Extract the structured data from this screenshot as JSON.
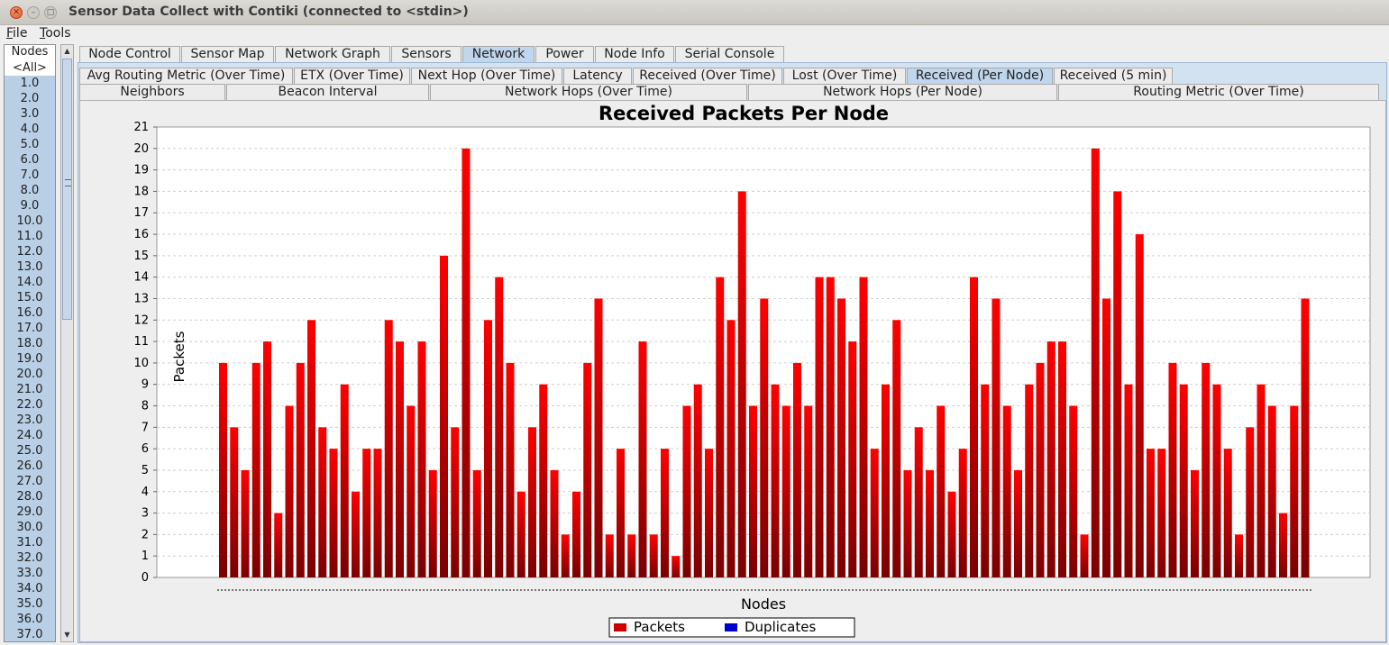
{
  "window": {
    "title": "Sensor Data Collect with Contiki (connected to <stdin>)"
  },
  "menu": {
    "file": "File",
    "tools": "Tools"
  },
  "nodes": {
    "header": "Nodes",
    "items": [
      "<All>",
      "1.0",
      "2.0",
      "3.0",
      "4.0",
      "5.0",
      "6.0",
      "7.0",
      "8.0",
      "9.0",
      "10.0",
      "11.0",
      "12.0",
      "13.0",
      "14.0",
      "15.0",
      "16.0",
      "17.0",
      "18.0",
      "19.0",
      "20.0",
      "21.0",
      "22.0",
      "23.0",
      "24.0",
      "25.0",
      "26.0",
      "27.0",
      "28.0",
      "29.0",
      "30.0",
      "31.0",
      "32.0",
      "33.0",
      "34.0",
      "35.0",
      "36.0",
      "37.0"
    ]
  },
  "main_tabs": [
    "Node Control",
    "Sensor Map",
    "Network Graph",
    "Sensors",
    "Network",
    "Power",
    "Node Info",
    "Serial Console"
  ],
  "main_tab_selected": "Network",
  "sub_tabs_row1": [
    "Avg Routing Metric (Over Time)",
    "ETX (Over Time)",
    "Next Hop (Over Time)",
    "Latency",
    "Received (Over Time)",
    "Lost (Over Time)",
    "Received (Per Node)",
    "Received (5 min)"
  ],
  "sub_tabs_row2": [
    "Neighbors",
    "Beacon Interval",
    "Network Hops (Over Time)",
    "Network Hops (Per Node)",
    "Routing Metric (Over Time)"
  ],
  "sub_tab_selected": "Received (Per Node)",
  "chart_data": {
    "type": "bar",
    "title": "Received Packets Per Node",
    "xlabel": "Nodes",
    "ylabel": "Packets",
    "ylim": [
      0,
      21
    ],
    "yticks": [
      0,
      1,
      2,
      3,
      4,
      5,
      6,
      7,
      8,
      9,
      10,
      11,
      12,
      13,
      14,
      15,
      16,
      17,
      18,
      19,
      20,
      21
    ],
    "grid": true,
    "legend_position": "bottom",
    "series": [
      {
        "name": "Packets",
        "color": "#e00000",
        "values": [
          10,
          7,
          5,
          10,
          11,
          3,
          8,
          10,
          12,
          7,
          6,
          9,
          4,
          6,
          6,
          12,
          11,
          8,
          11,
          5,
          15,
          7,
          20,
          5,
          12,
          14,
          10,
          4,
          7,
          9,
          5,
          2,
          4,
          10,
          13,
          2,
          6,
          2,
          11,
          2,
          6,
          1,
          8,
          9,
          6,
          14,
          12,
          18,
          8,
          13,
          9,
          8,
          10,
          8,
          14,
          14,
          13,
          11,
          14,
          6,
          9,
          12,
          5,
          7,
          5,
          8,
          4,
          6,
          14,
          9,
          13,
          8,
          5,
          9,
          10,
          11,
          11,
          8,
          2,
          20,
          13,
          18,
          9,
          16,
          6,
          6,
          10,
          9,
          5,
          10,
          9,
          6,
          2,
          7,
          9,
          8,
          3,
          8,
          13
        ]
      },
      {
        "name": "Duplicates",
        "color": "#0000cc",
        "values": []
      }
    ]
  }
}
